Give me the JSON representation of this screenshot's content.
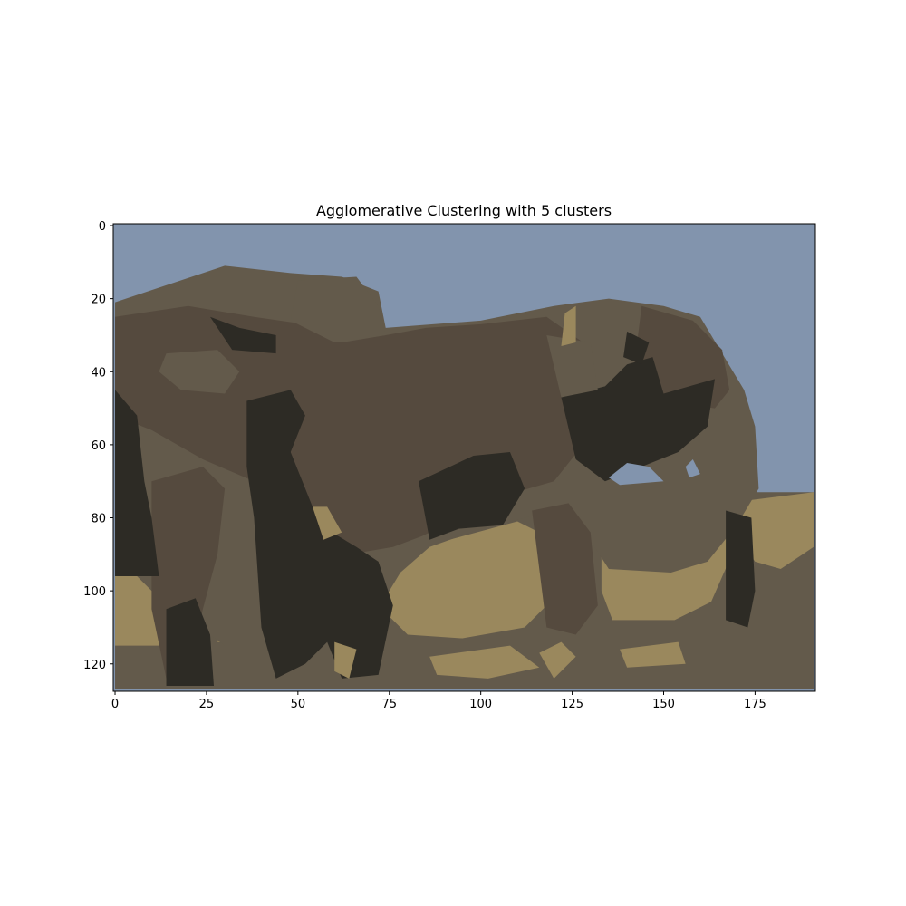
{
  "chart_data": {
    "type": "heatmap",
    "title": "Agglomerative Clustering with 5 clusters",
    "xlabel": "",
    "ylabel": "",
    "image_width": 192,
    "image_height": 128,
    "xlim": [
      0,
      191
    ],
    "ylim": [
      127,
      0
    ],
    "x_ticks": [
      0,
      25,
      50,
      75,
      100,
      125,
      150,
      175
    ],
    "y_ticks": [
      0,
      20,
      40,
      60,
      80,
      100,
      120
    ],
    "grid": false,
    "cluster_colors": {
      "sky": "#8294ad",
      "mid": "#635a4b",
      "body": "#554a3e",
      "dark": "#2d2b25",
      "ground": "#9a885d"
    },
    "regions": [
      {
        "cluster": "mid",
        "points": [
          [
            0,
            73
          ],
          [
            191,
            73
          ],
          [
            191,
            127
          ],
          [
            0,
            127
          ]
        ]
      },
      {
        "cluster": "ground",
        "points": [
          [
            0,
            96
          ],
          [
            12,
            96
          ],
          [
            12,
            115
          ],
          [
            0,
            115
          ]
        ]
      },
      {
        "cluster": "ground",
        "points": [
          [
            28,
            83
          ],
          [
            40,
            83
          ],
          [
            40,
            114
          ],
          [
            28,
            114
          ]
        ]
      },
      {
        "cluster": "ground",
        "points": [
          [
            74,
            95
          ],
          [
            84,
            88
          ],
          [
            110,
            81
          ],
          [
            116,
            84
          ],
          [
            118,
            104
          ],
          [
            112,
            110
          ],
          [
            95,
            113
          ],
          [
            80,
            112
          ],
          [
            74,
            106
          ]
        ]
      },
      {
        "cluster": "ground",
        "points": [
          [
            133,
            74
          ],
          [
            161,
            73
          ],
          [
            170,
            78
          ],
          [
            170,
            87
          ],
          [
            163,
            103
          ],
          [
            153,
            108
          ],
          [
            136,
            108
          ],
          [
            133,
            100
          ]
        ]
      },
      {
        "cluster": "ground",
        "points": [
          [
            167,
            76
          ],
          [
            191,
            73
          ],
          [
            191,
            88
          ],
          [
            182,
            94
          ],
          [
            175,
            92
          ],
          [
            170,
            85
          ]
        ]
      },
      {
        "cluster": "ground",
        "points": [
          [
            86,
            118
          ],
          [
            108,
            115
          ],
          [
            116,
            121
          ],
          [
            102,
            124
          ],
          [
            88,
            123
          ]
        ]
      },
      {
        "cluster": "ground",
        "points": [
          [
            138,
            116
          ],
          [
            154,
            114
          ],
          [
            156,
            120
          ],
          [
            140,
            121
          ]
        ]
      },
      {
        "cluster": "mid",
        "points": [
          [
            0,
            21
          ],
          [
            12,
            17
          ],
          [
            30,
            11
          ],
          [
            48,
            13
          ],
          [
            62,
            14
          ],
          [
            72,
            18
          ],
          [
            74,
            28
          ],
          [
            100,
            26
          ],
          [
            120,
            22
          ],
          [
            135,
            20
          ],
          [
            150,
            22
          ],
          [
            160,
            25
          ],
          [
            166,
            35
          ],
          [
            172,
            45
          ],
          [
            175,
            55
          ],
          [
            176,
            72
          ],
          [
            170,
            82
          ],
          [
            162,
            92
          ],
          [
            152,
            95
          ],
          [
            135,
            94
          ],
          [
            126,
            80
          ],
          [
            120,
            78
          ],
          [
            100,
            83
          ],
          [
            86,
            88
          ],
          [
            78,
            95
          ],
          [
            72,
            105
          ],
          [
            66,
            112
          ],
          [
            48,
            115
          ],
          [
            30,
            115
          ],
          [
            10,
            100
          ],
          [
            0,
            90
          ]
        ]
      },
      {
        "cluster": "body",
        "points": [
          [
            0,
            25
          ],
          [
            20,
            22
          ],
          [
            38,
            25
          ],
          [
            52,
            27
          ],
          [
            62,
            32
          ],
          [
            74,
            30
          ],
          [
            85,
            28
          ],
          [
            100,
            27
          ],
          [
            118,
            25
          ],
          [
            128,
            32
          ],
          [
            130,
            48
          ],
          [
            128,
            60
          ],
          [
            120,
            70
          ],
          [
            106,
            74
          ],
          [
            94,
            80
          ],
          [
            84,
            85
          ],
          [
            76,
            88
          ],
          [
            64,
            90
          ],
          [
            52,
            85
          ],
          [
            45,
            80
          ],
          [
            38,
            70
          ],
          [
            24,
            64
          ],
          [
            10,
            56
          ],
          [
            0,
            52
          ]
        ]
      },
      {
        "cluster": "body",
        "points": [
          [
            10,
            70
          ],
          [
            24,
            66
          ],
          [
            30,
            72
          ],
          [
            28,
            90
          ],
          [
            24,
            105
          ],
          [
            20,
            124
          ],
          [
            14,
            124
          ],
          [
            10,
            105
          ]
        ]
      },
      {
        "cluster": "body",
        "points": [
          [
            114,
            78
          ],
          [
            124,
            76
          ],
          [
            130,
            84
          ],
          [
            132,
            104
          ],
          [
            126,
            112
          ],
          [
            118,
            110
          ]
        ]
      },
      {
        "cluster": "body",
        "points": [
          [
            144,
            22
          ],
          [
            158,
            26
          ],
          [
            166,
            34
          ],
          [
            168,
            45
          ],
          [
            164,
            50
          ],
          [
            150,
            48
          ],
          [
            142,
            38
          ]
        ]
      },
      {
        "cluster": "dark",
        "points": [
          [
            0,
            45
          ],
          [
            6,
            52
          ],
          [
            8,
            70
          ],
          [
            10,
            80
          ],
          [
            12,
            96
          ],
          [
            0,
            96
          ]
        ]
      },
      {
        "cluster": "dark",
        "points": [
          [
            36,
            48
          ],
          [
            48,
            45
          ],
          [
            52,
            52
          ],
          [
            48,
            62
          ],
          [
            52,
            72
          ],
          [
            56,
            82
          ],
          [
            66,
            88
          ],
          [
            72,
            92
          ],
          [
            76,
            104
          ],
          [
            72,
            123
          ],
          [
            62,
            124
          ],
          [
            58,
            114
          ],
          [
            52,
            120
          ],
          [
            44,
            124
          ],
          [
            40,
            110
          ],
          [
            38,
            80
          ],
          [
            36,
            66
          ]
        ]
      },
      {
        "cluster": "dark",
        "points": [
          [
            14,
            105
          ],
          [
            22,
            102
          ],
          [
            26,
            112
          ],
          [
            27,
            126
          ],
          [
            14,
            126
          ]
        ]
      },
      {
        "cluster": "dark",
        "points": [
          [
            83,
            70
          ],
          [
            98,
            63
          ],
          [
            108,
            62
          ],
          [
            112,
            72
          ],
          [
            106,
            82
          ],
          [
            94,
            83
          ],
          [
            86,
            86
          ]
        ]
      },
      {
        "cluster": "dark",
        "points": [
          [
            122,
            47
          ],
          [
            134,
            44
          ],
          [
            140,
            38
          ],
          [
            147,
            36
          ],
          [
            150,
            46
          ],
          [
            164,
            42
          ],
          [
            162,
            55
          ],
          [
            154,
            62
          ],
          [
            144,
            66
          ],
          [
            134,
            70
          ],
          [
            126,
            64
          ]
        ]
      },
      {
        "cluster": "dark",
        "points": [
          [
            167,
            78
          ],
          [
            174,
            80
          ],
          [
            175,
            100
          ],
          [
            173,
            110
          ],
          [
            167,
            108
          ]
        ]
      },
      {
        "cluster": "dark",
        "points": [
          [
            26,
            25
          ],
          [
            34,
            28
          ],
          [
            44,
            30
          ],
          [
            44,
            35
          ],
          [
            32,
            34
          ]
        ]
      },
      {
        "cluster": "dark",
        "points": [
          [
            140,
            29
          ],
          [
            146,
            32
          ],
          [
            144,
            38
          ],
          [
            139,
            36
          ]
        ]
      },
      {
        "cluster": "mid",
        "points": [
          [
            14,
            35
          ],
          [
            28,
            34
          ],
          [
            34,
            40
          ],
          [
            30,
            46
          ],
          [
            18,
            45
          ],
          [
            12,
            40
          ]
        ]
      },
      {
        "cluster": "mid",
        "points": [
          [
            118,
            30
          ],
          [
            130,
            32
          ],
          [
            132,
            45
          ],
          [
            122,
            47
          ]
        ]
      },
      {
        "cluster": "mid",
        "points": [
          [
            50,
            15
          ],
          [
            66,
            14
          ],
          [
            72,
            22
          ],
          [
            74,
            30
          ],
          [
            60,
            32
          ],
          [
            48,
            26
          ]
        ]
      },
      {
        "cluster": "ground",
        "points": [
          [
            54,
            77
          ],
          [
            58,
            77
          ],
          [
            62,
            84
          ],
          [
            57,
            86
          ]
        ]
      },
      {
        "cluster": "ground",
        "points": [
          [
            123,
            24
          ],
          [
            126,
            22
          ],
          [
            126,
            32
          ],
          [
            122,
            33
          ]
        ]
      },
      {
        "cluster": "ground",
        "points": [
          [
            116,
            117
          ],
          [
            122,
            114
          ],
          [
            126,
            118
          ],
          [
            120,
            124
          ]
        ]
      },
      {
        "cluster": "ground",
        "points": [
          [
            60,
            114
          ],
          [
            66,
            116
          ],
          [
            64,
            124
          ],
          [
            60,
            122
          ]
        ]
      },
      {
        "cluster": "sky",
        "points": [
          [
            135,
            69
          ],
          [
            140,
            65
          ],
          [
            146,
            66
          ],
          [
            150,
            70
          ],
          [
            138,
            71
          ]
        ]
      },
      {
        "cluster": "sky",
        "points": [
          [
            156,
            66
          ],
          [
            158,
            64
          ],
          [
            160,
            68
          ],
          [
            157,
            69
          ]
        ]
      }
    ]
  }
}
